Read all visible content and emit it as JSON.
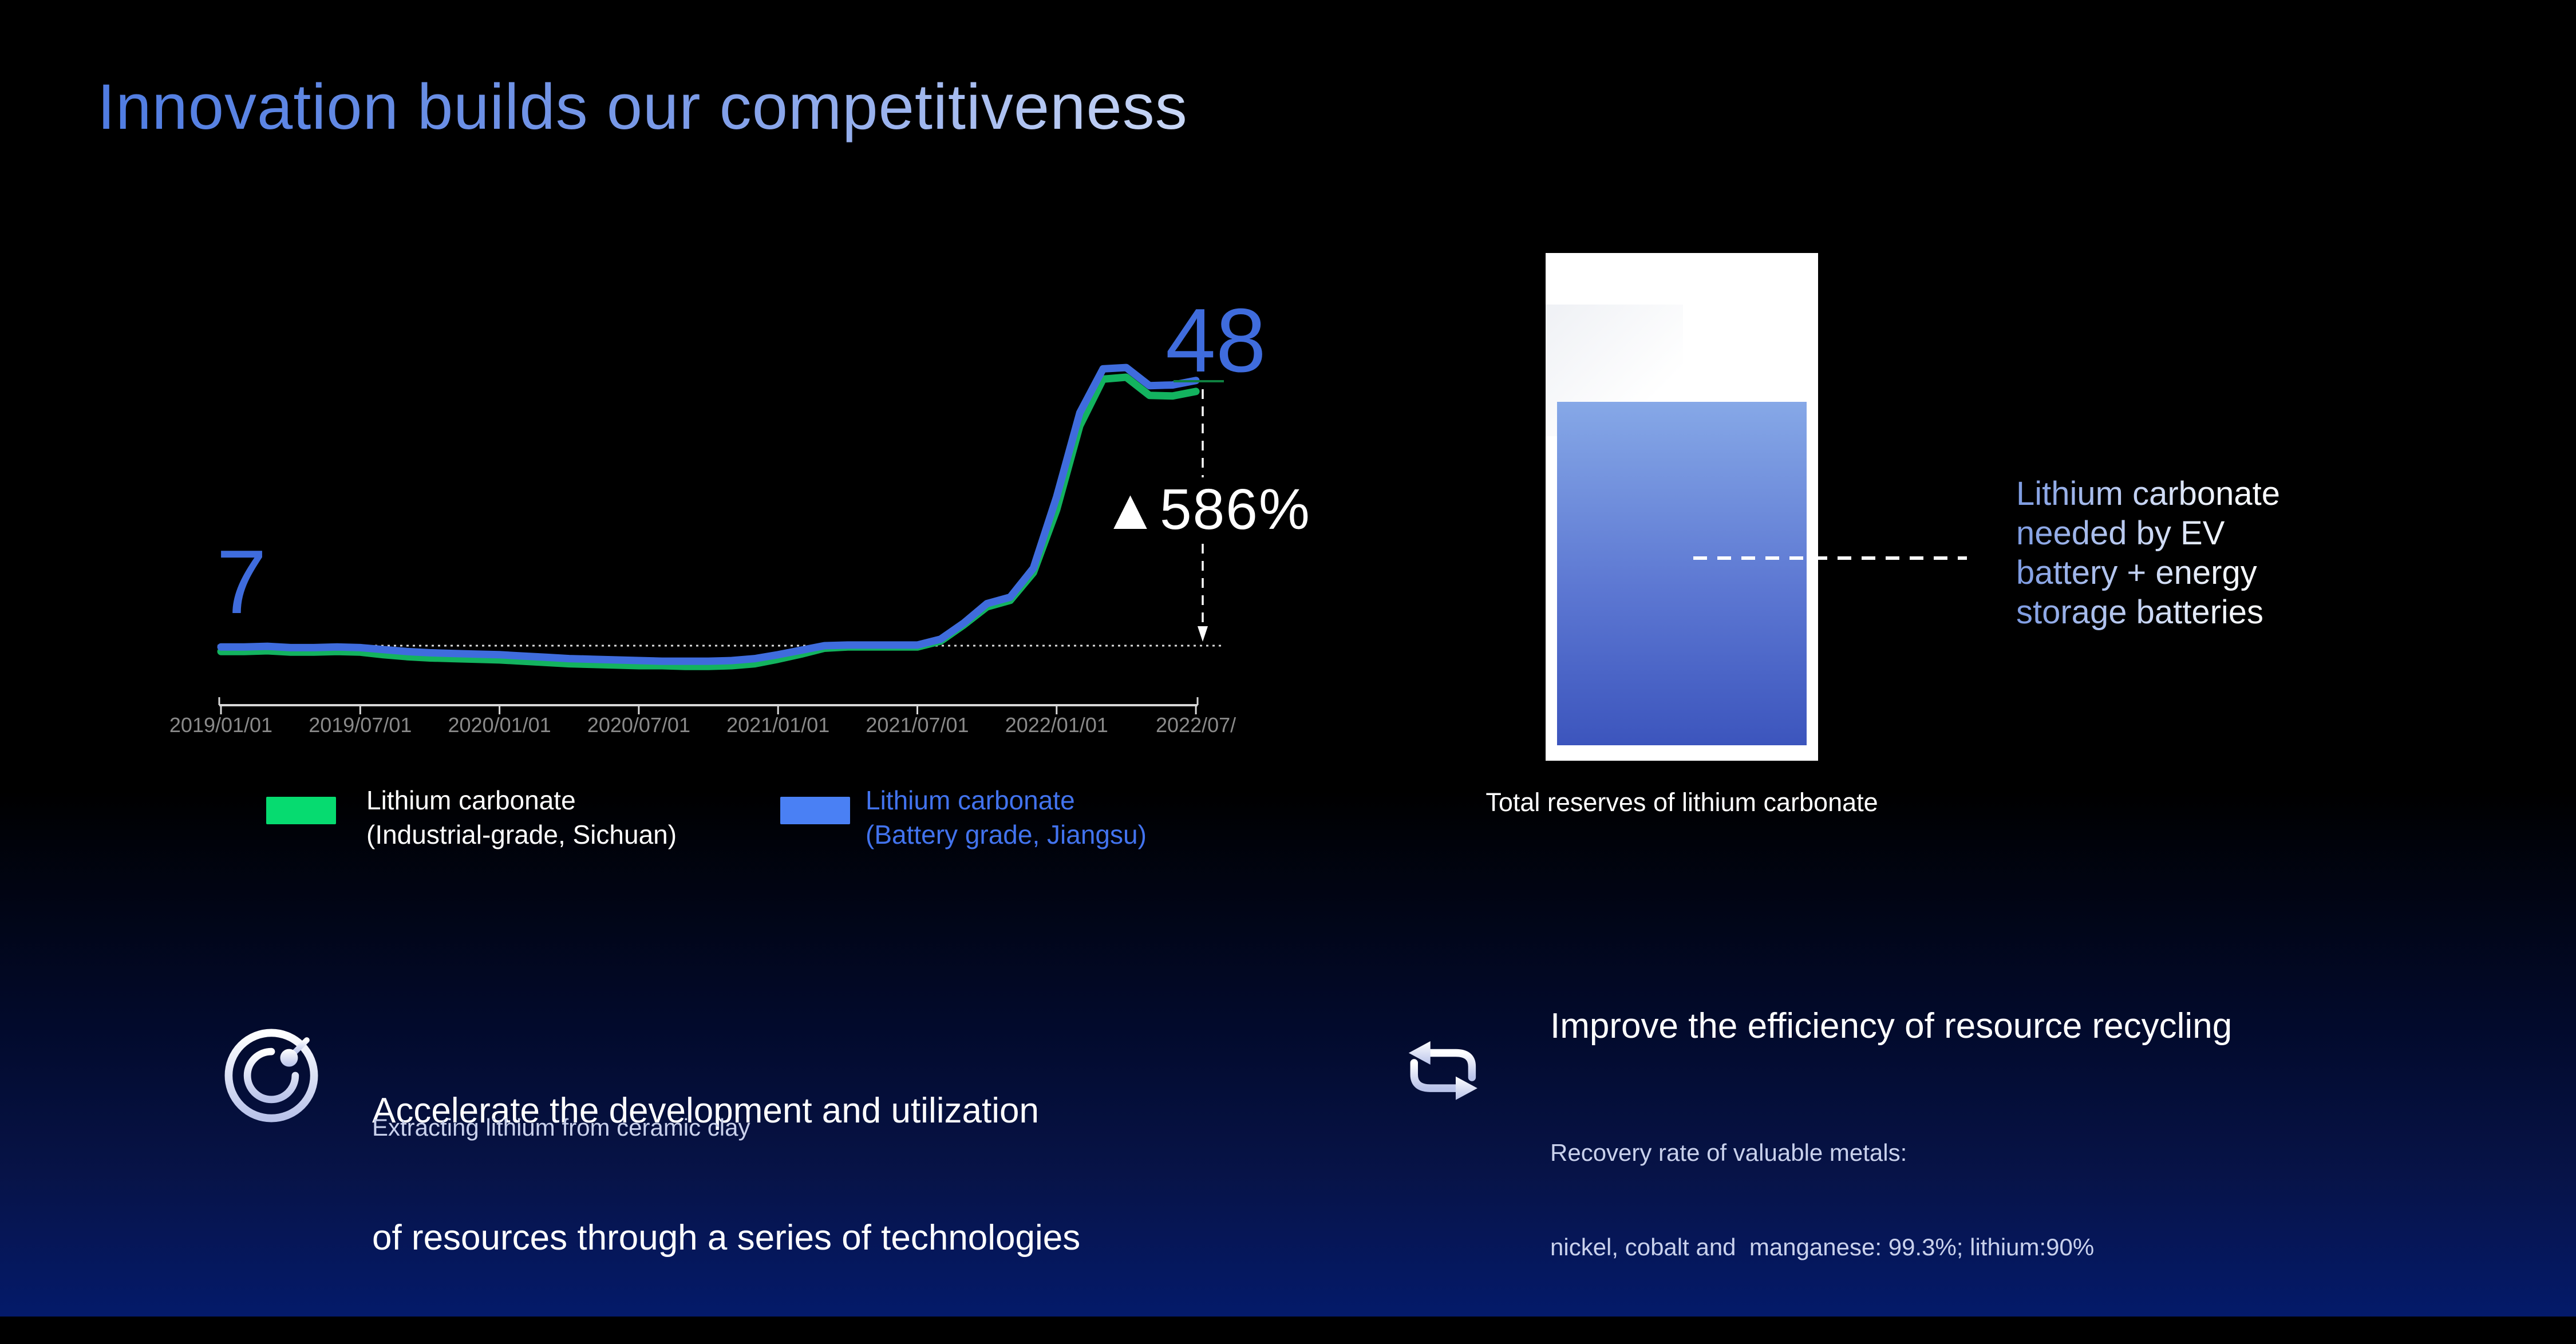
{
  "slide": {
    "title": "Innovation builds our competitiveness"
  },
  "price_chart": {
    "start_label": "7",
    "end_label": "48",
    "change_label": "▲586%",
    "legend": [
      {
        "swatch_color": "#06db70",
        "text_color": "#ffffff",
        "line1": "Lithium carbonate",
        "line2": "(Industrial-grade, Sichuan)"
      },
      {
        "swatch_color": "#4a80f4",
        "text_color": "#4273ee",
        "line1": "Lithium carbonate",
        "line2": "(Battery grade, Jiangsu)"
      }
    ]
  },
  "chart_data": {
    "type": "line",
    "title": "",
    "xlabel": "",
    "ylabel": "",
    "x": [
      "2019/01",
      "2019/02",
      "2019/03",
      "2019/04",
      "2019/05",
      "2019/06",
      "2019/07",
      "2019/08",
      "2019/09",
      "2019/10",
      "2019/11",
      "2019/12",
      "2020/01",
      "2020/02",
      "2020/03",
      "2020/04",
      "2020/05",
      "2020/06",
      "2020/07",
      "2020/08",
      "2020/09",
      "2020/10",
      "2020/11",
      "2020/12",
      "2021/01",
      "2021/02",
      "2021/03",
      "2021/04",
      "2021/05",
      "2021/06",
      "2021/07",
      "2021/08",
      "2021/09",
      "2021/10",
      "2021/11",
      "2021/12",
      "2022/01",
      "2022/02",
      "2022/03",
      "2022/04",
      "2022/05",
      "2022/06",
      "2022/07"
    ],
    "x_axis_ticks": [
      "2019/01/01",
      "2019/07/01",
      "2020/01/01",
      "2020/07/01",
      "2021/01/01",
      "2021/07/01",
      "2022/01/01",
      "2022/07/"
    ],
    "series": [
      {
        "name": "Lithium carbonate (Industrial-grade, Sichuan)",
        "color": "#13b35f",
        "values": [
          6.1,
          6.1,
          6.2,
          6.0,
          6.0,
          6.1,
          6.0,
          5.6,
          5.3,
          5.1,
          5.0,
          4.9,
          4.8,
          4.6,
          4.4,
          4.2,
          4.1,
          4.0,
          3.9,
          3.9,
          3.8,
          3.8,
          3.9,
          4.2,
          4.9,
          5.7,
          6.6,
          6.8,
          6.8,
          6.8,
          6.8,
          7.7,
          10.2,
          13.0,
          14.0,
          18.3,
          28.0,
          41.0,
          48.2,
          48.5,
          45.7,
          45.6,
          46.3
        ]
      },
      {
        "name": "Lithium carbonate (Battery grade, Jiangsu)",
        "color": "#3f6cdd",
        "values": [
          6.8,
          6.8,
          6.9,
          6.7,
          6.7,
          6.8,
          6.7,
          6.4,
          6.1,
          5.9,
          5.8,
          5.7,
          5.6,
          5.4,
          5.2,
          5.0,
          4.9,
          4.8,
          4.7,
          4.6,
          4.6,
          4.6,
          4.7,
          5.0,
          5.6,
          6.3,
          7.0,
          7.1,
          7.1,
          7.1,
          7.1,
          8.0,
          10.5,
          13.5,
          14.5,
          19.0,
          30.0,
          43.0,
          49.8,
          50.0,
          47.2,
          47.3,
          48.0
        ]
      }
    ],
    "baseline_value": 7,
    "ylim": [
      3,
      52
    ],
    "grid": false,
    "legend_position": "bottom",
    "annotations": {
      "start_value": "7",
      "end_value": "48",
      "change": "▲586%"
    }
  },
  "reserves_panel": {
    "caption": "Total reserves of lithium carbonate",
    "label_lines": [
      "Lithium carbonate",
      "needed by EV",
      "battery + energy",
      "storage batteries"
    ],
    "fill_top_color": "#86a8e7",
    "fill_bottom_color": "#3c55bd"
  },
  "highlights": [
    {
      "icon": "radar-target",
      "title_lines": [
        "Accelerate the development and utilization",
        "of resources through a series of technologies"
      ],
      "subtitle_lines": [
        "Extracting lithium from ceramic clay"
      ]
    },
    {
      "icon": "recycle-arrows",
      "title_lines": [
        "Improve the efficiency of resource recycling"
      ],
      "subtitle_lines": [
        "Recovery rate of valuable metals:",
        "nickel, cobalt and  manganese: 99.3%; lithium:90%"
      ]
    }
  ],
  "colors": {
    "accent_blue": "#3f6cdd",
    "line_green": "#13b35f",
    "legend_green": "#06db70",
    "legend_blue_text": "#4273ee",
    "axis_gray": "#8a8a8a",
    "lavender_text": "#c9d1ec",
    "background_bottom": "#041a6a"
  }
}
